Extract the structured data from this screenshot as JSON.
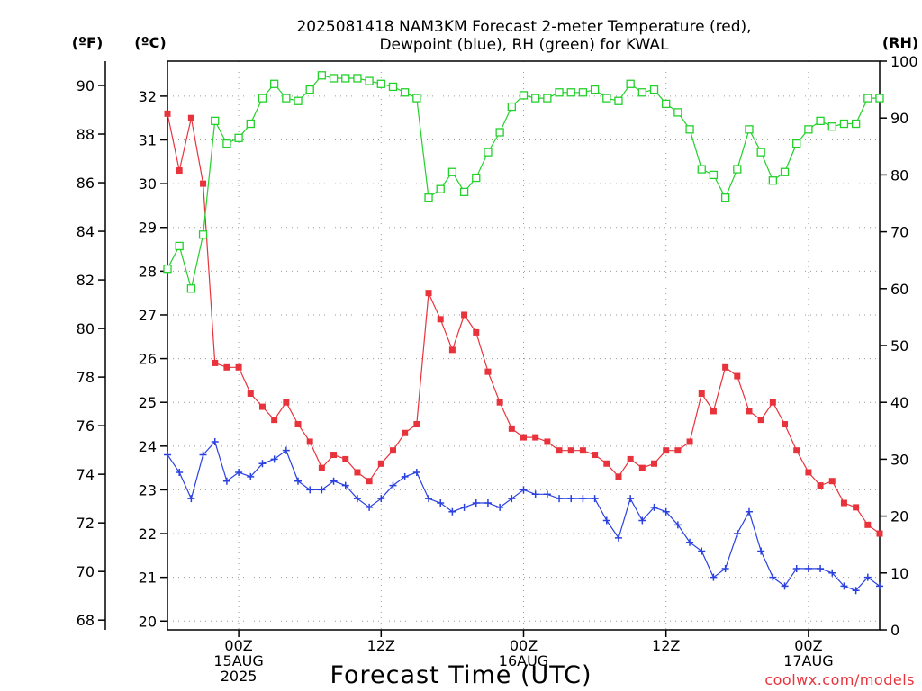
{
  "chart_data": {
    "type": "line",
    "title_line1": "2025081418 NAM3KM Forecast 2-meter Temperature (red),",
    "title_line2": "Dewpoint (blue), RH (green) for KWAL",
    "xlabel": "Forecast Time (UTC)",
    "credit": "coolwx.com/models",
    "units": {
      "fahrenheit": "(ºF)",
      "celsius": "(ºC)",
      "rh": "(RH)"
    },
    "x_tick_labels": [
      {
        "hour": 6,
        "lines": [
          "00Z",
          "15AUG",
          "2025"
        ]
      },
      {
        "hour": 18,
        "lines": [
          "12Z"
        ]
      },
      {
        "hour": 30,
        "lines": [
          "00Z",
          "16AUG"
        ]
      },
      {
        "hour": 42,
        "lines": [
          "12Z"
        ]
      },
      {
        "hour": 54,
        "lines": [
          "00Z",
          "17AUG"
        ]
      }
    ],
    "x_hours_since_run": [
      0,
      1,
      2,
      3,
      4,
      5,
      6,
      7,
      8,
      9,
      10,
      11,
      12,
      13,
      14,
      15,
      16,
      17,
      18,
      19,
      20,
      21,
      22,
      23,
      24,
      25,
      26,
      27,
      28,
      29,
      30,
      31,
      32,
      33,
      34,
      35,
      36,
      37,
      38,
      39,
      40,
      41,
      42,
      43,
      44,
      45,
      46,
      47,
      48,
      49,
      50,
      51,
      52,
      53,
      54,
      55,
      56,
      57,
      58,
      59,
      60
    ],
    "xlim": [
      0,
      60
    ],
    "fahrenheit_axis": {
      "range": [
        67.6,
        91.0
      ],
      "ticks": [
        68,
        70,
        72,
        74,
        76,
        78,
        80,
        82,
        84,
        86,
        88,
        90
      ]
    },
    "celsius_axis": {
      "range": [
        19.8,
        32.8
      ],
      "ticks": [
        20,
        21,
        22,
        23,
        24,
        25,
        26,
        27,
        28,
        29,
        30,
        31,
        32
      ]
    },
    "rh_axis": {
      "range": [
        0,
        100
      ],
      "ticks": [
        0,
        10,
        20,
        30,
        40,
        50,
        60,
        70,
        80,
        90,
        100
      ]
    },
    "grid": true,
    "series": [
      {
        "name": "Temperature",
        "color": "#e8333c",
        "marker": "filled-square",
        "axis": "celsius",
        "values": [
          31.6,
          30.3,
          31.5,
          30.0,
          25.9,
          25.8,
          25.8,
          25.2,
          24.9,
          24.6,
          25.0,
          24.5,
          24.1,
          23.5,
          23.8,
          23.7,
          23.4,
          23.2,
          23.6,
          23.9,
          24.3,
          24.5,
          27.5,
          26.9,
          26.2,
          27.0,
          26.6,
          25.7,
          25.0,
          24.4,
          24.2,
          24.2,
          24.1,
          23.9,
          23.9,
          23.9,
          23.8,
          23.6,
          23.3,
          23.7,
          23.5,
          23.6,
          23.9,
          23.9,
          24.1,
          25.2,
          24.8,
          25.8,
          25.6,
          24.8,
          24.6,
          25.0,
          24.5,
          23.9,
          23.4,
          23.1,
          23.2,
          22.7,
          22.6,
          22.2,
          22.0
        ]
      },
      {
        "name": "Dewpoint",
        "color": "#2a41e0",
        "marker": "plus",
        "axis": "celsius",
        "values": [
          23.8,
          23.4,
          22.8,
          23.8,
          24.1,
          23.2,
          23.4,
          23.3,
          23.6,
          23.7,
          23.9,
          23.2,
          23.0,
          23.0,
          23.2,
          23.1,
          22.8,
          22.6,
          22.8,
          23.1,
          23.3,
          23.4,
          22.8,
          22.7,
          22.5,
          22.6,
          22.7,
          22.7,
          22.6,
          22.8,
          23.0,
          22.9,
          22.9,
          22.8,
          22.8,
          22.8,
          22.8,
          22.3,
          21.9,
          22.8,
          22.3,
          22.6,
          22.5,
          22.2,
          21.8,
          21.6,
          21.0,
          21.2,
          22.0,
          22.5,
          21.6,
          21.0,
          20.8,
          21.2,
          21.2,
          21.2,
          21.1,
          20.8,
          20.7,
          21.0,
          20.8
        ]
      },
      {
        "name": "RH",
        "color": "#22d12a",
        "marker": "open-square",
        "axis": "rh",
        "values": [
          63.5,
          67.5,
          60.0,
          69.5,
          89.5,
          85.5,
          86.5,
          89.0,
          93.5,
          96.0,
          93.5,
          93.0,
          95.0,
          97.5,
          97.0,
          97.0,
          97.0,
          96.5,
          96.0,
          95.5,
          94.5,
          93.5,
          76.0,
          77.5,
          80.5,
          77.0,
          79.5,
          84.0,
          87.5,
          92.0,
          94.0,
          93.5,
          93.5,
          94.5,
          94.5,
          94.5,
          95.0,
          93.5,
          93.0,
          96.0,
          94.5,
          95.0,
          92.5,
          91.0,
          88.0,
          81.0,
          80.0,
          76.0,
          81.0,
          88.0,
          84.0,
          79.0,
          80.5,
          85.5,
          88.0,
          89.5,
          88.5,
          89.0,
          89.0,
          93.5,
          93.5
        ]
      }
    ]
  }
}
